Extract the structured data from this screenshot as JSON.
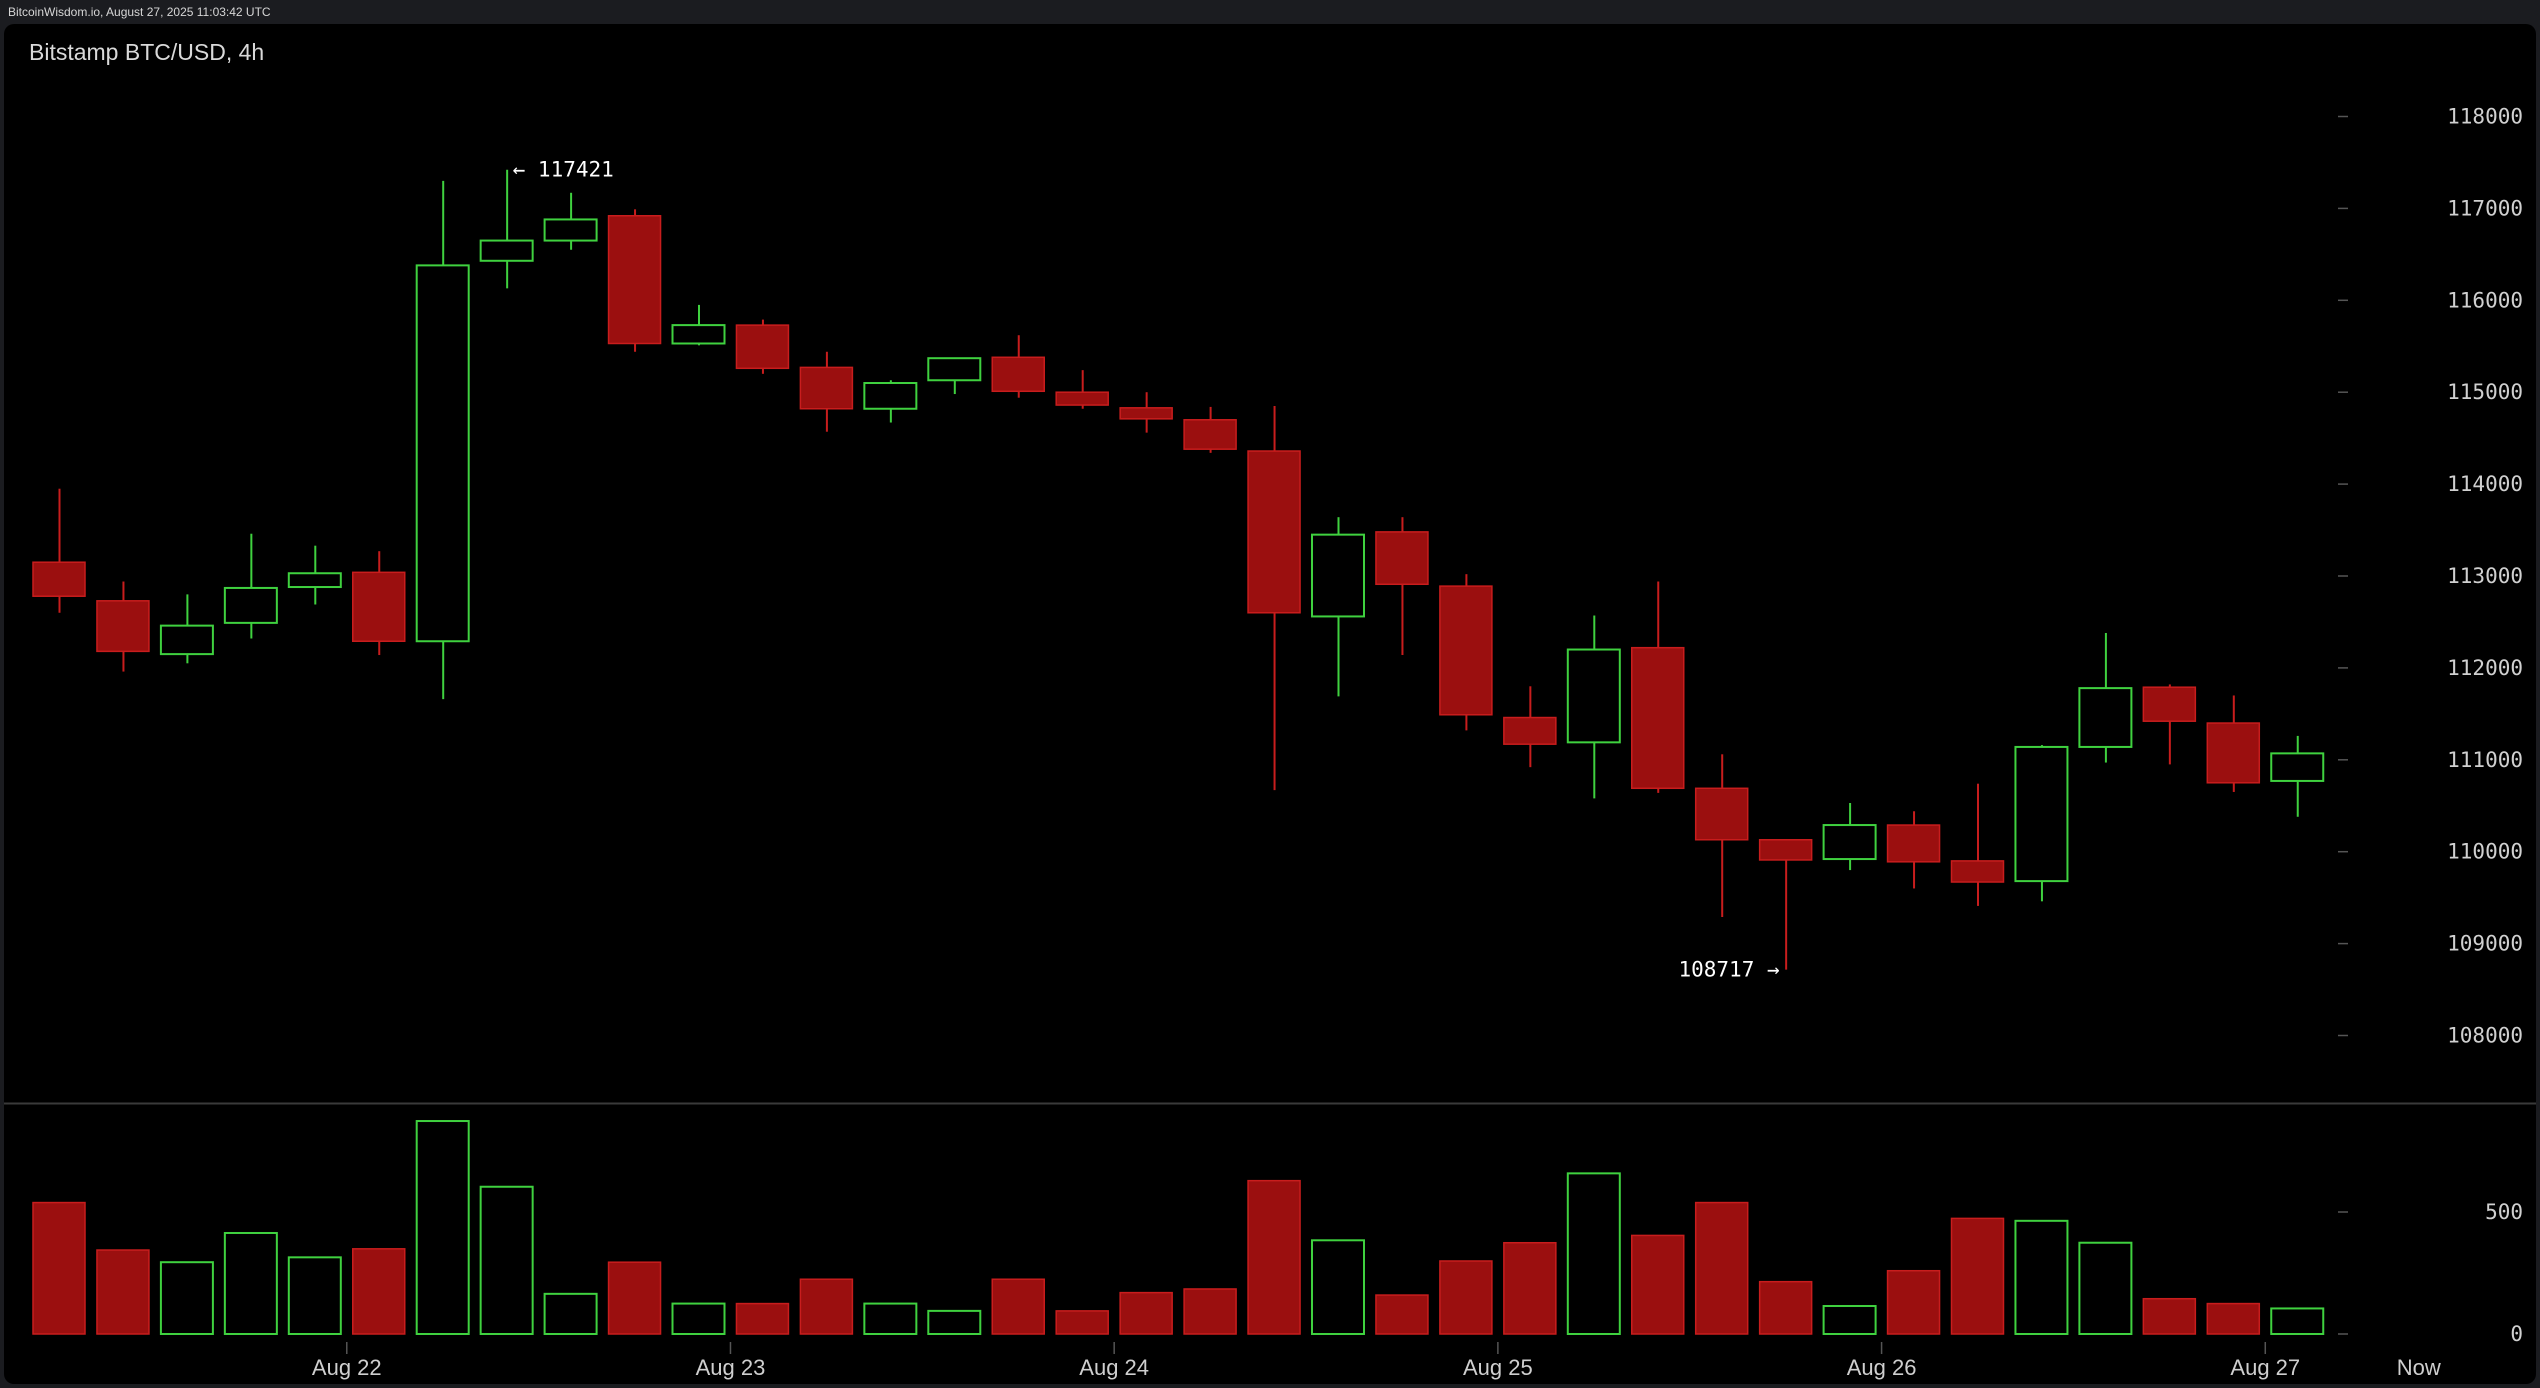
{
  "header": {
    "source": "BitcoinWisdom.io, August 27, 2025 11:03:42 UTC"
  },
  "chart_data": {
    "type": "candlestick",
    "title": "Bitstamp BTC/USD, 4h",
    "colors": {
      "up": "#3fd13f",
      "down": "#9b0f0f",
      "down_edge": "#c81d1d",
      "background": "#000000"
    },
    "price_axis": {
      "ticks": [
        "118000",
        "117000",
        "116000",
        "115000",
        "114000",
        "113000",
        "112000",
        "111000",
        "110000",
        "109000",
        "108000"
      ]
    },
    "volume_axis": {
      "ticks": [
        "500",
        "0"
      ]
    },
    "x_ticks": [
      {
        "label": "Aug 22",
        "at": 4.5
      },
      {
        "label": "Aug 23",
        "at": 10.5
      },
      {
        "label": "Aug 24",
        "at": 16.5
      },
      {
        "label": "Aug 25",
        "at": 22.5
      },
      {
        "label": "Aug 26",
        "at": 28.5
      },
      {
        "label": "Aug 27",
        "at": 34.5
      },
      {
        "label": "Now",
        "at": 36.9
      }
    ],
    "candles": [
      {
        "o": 113150,
        "h": 113950,
        "l": 112600,
        "c": 112780,
        "v": 540
      },
      {
        "o": 112730,
        "h": 112940,
        "l": 111960,
        "c": 112180,
        "v": 345
      },
      {
        "o": 112150,
        "h": 112800,
        "l": 112050,
        "c": 112460,
        "v": 295
      },
      {
        "o": 112490,
        "h": 113460,
        "l": 112320,
        "c": 112870,
        "v": 415
      },
      {
        "o": 112880,
        "h": 113330,
        "l": 112690,
        "c": 113030,
        "v": 315
      },
      {
        "o": 113040,
        "h": 113270,
        "l": 112140,
        "c": 112290,
        "v": 350
      },
      {
        "o": 112290,
        "h": 117300,
        "l": 111660,
        "c": 116380,
        "v": 875
      },
      {
        "o": 116430,
        "h": 117421,
        "l": 116130,
        "c": 116650,
        "v": 605
      },
      {
        "o": 116650,
        "h": 117170,
        "l": 116550,
        "c": 116880,
        "v": 165
      },
      {
        "o": 116920,
        "h": 116990,
        "l": 115440,
        "c": 115530,
        "v": 295
      },
      {
        "o": 115530,
        "h": 115950,
        "l": 115510,
        "c": 115730,
        "v": 125
      },
      {
        "o": 115730,
        "h": 115790,
        "l": 115200,
        "c": 115260,
        "v": 125
      },
      {
        "o": 115270,
        "h": 115440,
        "l": 114570,
        "c": 114820,
        "v": 225
      },
      {
        "o": 114820,
        "h": 115130,
        "l": 114670,
        "c": 115100,
        "v": 125
      },
      {
        "o": 115130,
        "h": 115370,
        "l": 114980,
        "c": 115370,
        "v": 95
      },
      {
        "o": 115380,
        "h": 115620,
        "l": 114940,
        "c": 115010,
        "v": 225
      },
      {
        "o": 115000,
        "h": 115240,
        "l": 114820,
        "c": 114860,
        "v": 95
      },
      {
        "o": 114830,
        "h": 115000,
        "l": 114560,
        "c": 114710,
        "v": 170
      },
      {
        "o": 114700,
        "h": 114840,
        "l": 114340,
        "c": 114380,
        "v": 185
      },
      {
        "o": 114360,
        "h": 114850,
        "l": 110670,
        "c": 112600,
        "v": 630
      },
      {
        "o": 112560,
        "h": 113640,
        "l": 111690,
        "c": 113450,
        "v": 385
      },
      {
        "o": 113480,
        "h": 113640,
        "l": 112140,
        "c": 112910,
        "v": 160
      },
      {
        "o": 112890,
        "h": 113020,
        "l": 111320,
        "c": 111490,
        "v": 300
      },
      {
        "o": 111460,
        "h": 111800,
        "l": 110920,
        "c": 111170,
        "v": 375
      },
      {
        "o": 111190,
        "h": 112570,
        "l": 110580,
        "c": 112200,
        "v": 660
      },
      {
        "o": 112220,
        "h": 112940,
        "l": 110640,
        "c": 110690,
        "v": 405
      },
      {
        "o": 110690,
        "h": 111060,
        "l": 109290,
        "c": 110130,
        "v": 540
      },
      {
        "o": 110130,
        "h": 110130,
        "l": 108717,
        "c": 109910,
        "v": 215
      },
      {
        "o": 109920,
        "h": 110530,
        "l": 109800,
        "c": 110290,
        "v": 115
      },
      {
        "o": 110290,
        "h": 110440,
        "l": 109600,
        "c": 109890,
        "v": 260
      },
      {
        "o": 109900,
        "h": 110740,
        "l": 109410,
        "c": 109670,
        "v": 475
      },
      {
        "o": 109680,
        "h": 111160,
        "l": 109460,
        "c": 111140,
        "v": 465
      },
      {
        "o": 111140,
        "h": 112380,
        "l": 110970,
        "c": 111780,
        "v": 375
      },
      {
        "o": 111790,
        "h": 111820,
        "l": 110950,
        "c": 111420,
        "v": 145
      },
      {
        "o": 111400,
        "h": 111700,
        "l": 110650,
        "c": 110750,
        "v": 125
      },
      {
        "o": 110770,
        "h": 111260,
        "l": 110380,
        "c": 111070,
        "v": 105
      }
    ],
    "annotations": [
      {
        "text": "← 117421",
        "candle": 7,
        "price": 117421,
        "side": "right"
      },
      {
        "text": "108717 →",
        "candle": 27,
        "price": 108717,
        "side": "left"
      }
    ]
  }
}
